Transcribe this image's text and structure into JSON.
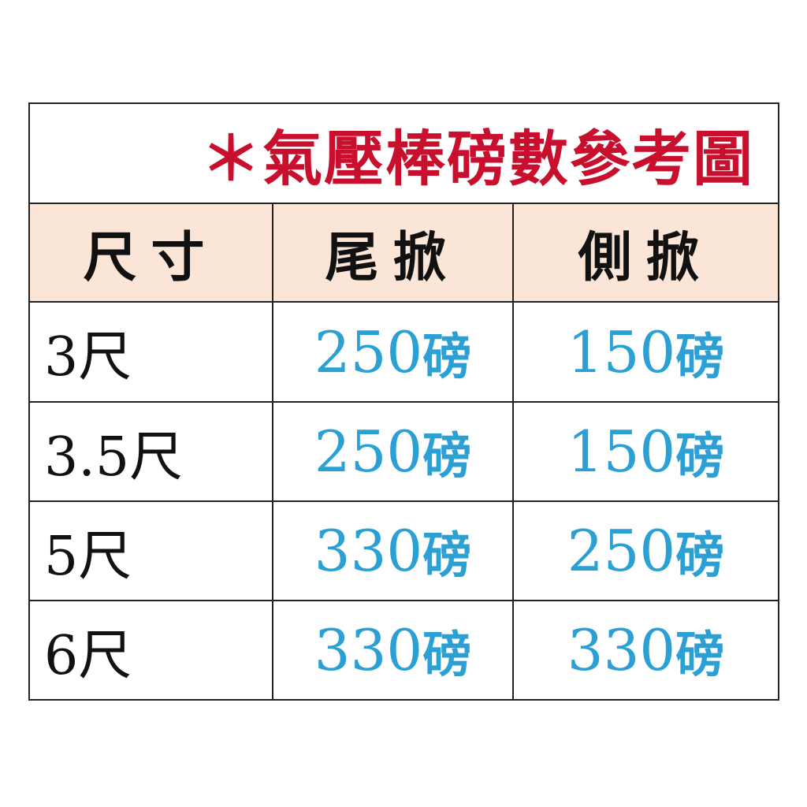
{
  "title": "＊氣壓棒磅數參考圖",
  "colors": {
    "title": "#c8102e",
    "value": "#2aa0d4",
    "header_bg": "#fbe5d6",
    "border": "#222222"
  },
  "headers": [
    "尺寸",
    "尾掀",
    "側掀"
  ],
  "unit": "磅",
  "rows": [
    {
      "size": "3尺",
      "tail": "250",
      "side": "150"
    },
    {
      "size": "3.5尺",
      "tail": "250",
      "side": "150"
    },
    {
      "size": "5尺",
      "tail": "330",
      "side": "250"
    },
    {
      "size": "6尺",
      "tail": "330",
      "side": "330"
    }
  ]
}
